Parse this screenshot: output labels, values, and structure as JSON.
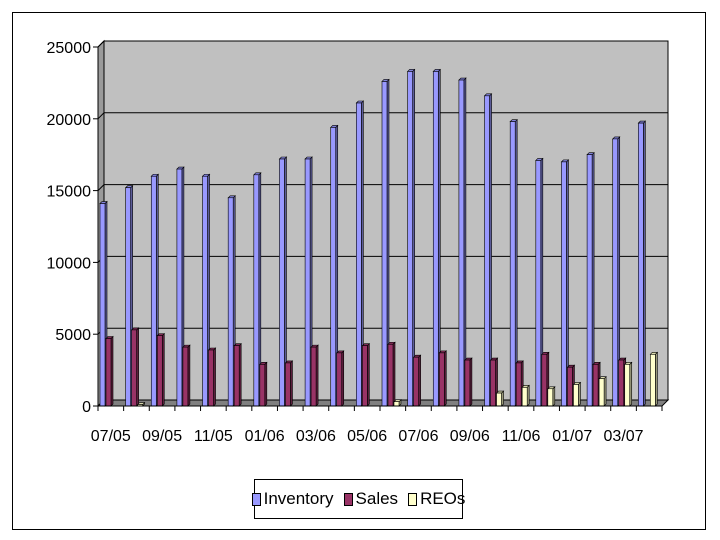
{
  "chart_data": {
    "type": "bar",
    "categories": [
      "07/05",
      "08/05",
      "09/05",
      "10/05",
      "11/05",
      "12/05",
      "01/06",
      "02/06",
      "03/06",
      "04/06",
      "05/06",
      "06/06",
      "07/06",
      "08/06",
      "09/06",
      "10/06",
      "11/06",
      "12/06",
      "01/07",
      "02/07",
      "03/07",
      "04/07"
    ],
    "x_tick_labels": [
      "07/05",
      "09/05",
      "11/05",
      "01/06",
      "03/06",
      "05/06",
      "07/06",
      "09/06",
      "11/06",
      "01/07",
      "03/07"
    ],
    "series": [
      {
        "name": "Inventory",
        "color": "#9999ff",
        "values": [
          14100,
          15200,
          16000,
          16500,
          16000,
          14500,
          16100,
          17200,
          17200,
          19400,
          21100,
          22600,
          23300,
          23300,
          22700,
          21600,
          19800,
          17100,
          17000,
          17500,
          18600,
          19700
        ]
      },
      {
        "name": "Sales",
        "color": "#993366",
        "values": [
          4700,
          5300,
          4900,
          4100,
          3900,
          4200,
          2900,
          3000,
          4100,
          3700,
          4200,
          4300,
          3400,
          3700,
          3200,
          3200,
          3000,
          3600,
          2700,
          2900,
          3200,
          0
        ]
      },
      {
        "name": "REOs",
        "color": "#ffffcc",
        "values": [
          0,
          100,
          0,
          0,
          0,
          0,
          0,
          0,
          0,
          0,
          0,
          300,
          0,
          0,
          0,
          900,
          1300,
          1200,
          1500,
          1900,
          2900,
          3600
        ]
      }
    ],
    "yticks": [
      "0",
      "5000",
      "10000",
      "15000",
      "20000",
      "25000"
    ],
    "ylim": [
      0,
      25000
    ],
    "grid": true,
    "legend_position": "bottom",
    "plot_background": "#c0c0c0"
  }
}
